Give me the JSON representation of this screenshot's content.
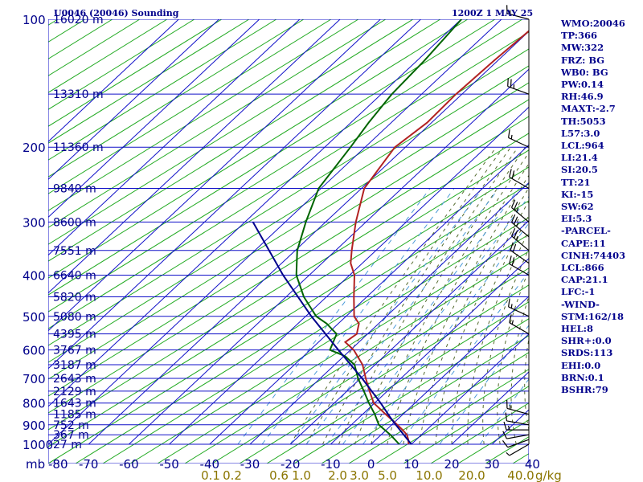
{
  "header": {
    "station_title": "U0046 (20046) Sounding",
    "valid_time": "1200Z  1 MAY 25"
  },
  "chart_data": {
    "type": "skew-t",
    "pressure_levels": [
      100,
      200,
      300,
      400,
      500,
      600,
      700,
      800,
      900,
      1000
    ],
    "pressure_unit_label": "mb",
    "temperature_ticks": [
      -80,
      -70,
      -60,
      -50,
      -40,
      -30,
      -20,
      -10,
      0,
      10,
      20,
      30,
      40
    ],
    "height_labels": [
      {
        "p": 100,
        "text": "16020 m"
      },
      {
        "p": 150,
        "text": "13310 m"
      },
      {
        "p": 200,
        "text": "11360 m"
      },
      {
        "p": 250,
        "text": "9840 m"
      },
      {
        "p": 300,
        "text": "8600 m"
      },
      {
        "p": 350,
        "text": "7551 m"
      },
      {
        "p": 400,
        "text": "6640 m"
      },
      {
        "p": 450,
        "text": "5820 m"
      },
      {
        "p": 500,
        "text": "5080 m"
      },
      {
        "p": 550,
        "text": "4395 m"
      },
      {
        "p": 600,
        "text": "3767 m"
      },
      {
        "p": 650,
        "text": "3187 m"
      },
      {
        "p": 700,
        "text": "2643 m"
      },
      {
        "p": 750,
        "text": "2129 m"
      },
      {
        "p": 800,
        "text": "1643 m"
      },
      {
        "p": 850,
        "text": "1185 m"
      },
      {
        "p": 900,
        "text": "752 m"
      },
      {
        "p": 950,
        "text": "367 m"
      },
      {
        "p": 1000,
        "text": "27 m"
      }
    ],
    "mixing_ratio_labels": [
      "0.1",
      "0.2",
      "0.6",
      "1.0",
      "2.0",
      "3.0",
      "5.0",
      "10.0",
      "20.0",
      "40.0"
    ],
    "mixing_ratio_unit": "g/kg",
    "series": [
      {
        "role": "temperature",
        "color": "#b22222",
        "points": [
          {
            "p": 1000,
            "t": 9.3
          },
          {
            "p": 975,
            "t": 8.0
          },
          {
            "p": 950,
            "t": 6.4
          },
          {
            "p": 925,
            "t": 4.0
          },
          {
            "p": 900,
            "t": 1.4
          },
          {
            "p": 850,
            "t": -4.3
          },
          {
            "p": 800,
            "t": -10.2
          },
          {
            "p": 750,
            "t": -14.4
          },
          {
            "p": 700,
            "t": -18.7
          },
          {
            "p": 650,
            "t": -23.1
          },
          {
            "p": 600,
            "t": -29.2
          },
          {
            "p": 575,
            "t": -33.4
          },
          {
            "p": 550,
            "t": -32.7
          },
          {
            "p": 520,
            "t": -34.9
          },
          {
            "p": 500,
            "t": -38.0
          },
          {
            "p": 450,
            "t": -43.2
          },
          {
            "p": 400,
            "t": -48.8
          },
          {
            "p": 375,
            "t": -52.9
          },
          {
            "p": 350,
            "t": -56.0
          },
          {
            "p": 300,
            "t": -62.5
          },
          {
            "p": 250,
            "t": -69.3
          },
          {
            "p": 200,
            "t": -72.6
          },
          {
            "p": 175,
            "t": -71.1
          },
          {
            "p": 150,
            "t": -71.5
          },
          {
            "p": 125,
            "t": -70.9
          },
          {
            "p": 100,
            "t": -69.8
          }
        ]
      },
      {
        "role": "dewpoint",
        "color": "#006400",
        "points": [
          {
            "p": 1000,
            "t": 7.0
          },
          {
            "p": 950,
            "t": 2.3
          },
          {
            "p": 900,
            "t": -3.2
          },
          {
            "p": 850,
            "t": -7.0
          },
          {
            "p": 800,
            "t": -11.4
          },
          {
            "p": 750,
            "t": -15.8
          },
          {
            "p": 700,
            "t": -20.6
          },
          {
            "p": 650,
            "t": -25.1
          },
          {
            "p": 620,
            "t": -29.8
          },
          {
            "p": 600,
            "t": -35.1
          },
          {
            "p": 550,
            "t": -37.7
          },
          {
            "p": 520,
            "t": -42.9
          },
          {
            "p": 500,
            "t": -47.4
          },
          {
            "p": 450,
            "t": -55.6
          },
          {
            "p": 400,
            "t": -63.2
          },
          {
            "p": 350,
            "t": -69.5
          },
          {
            "p": 300,
            "t": -74.9
          },
          {
            "p": 250,
            "t": -80.6
          },
          {
            "p": 200,
            "t": -83.6
          },
          {
            "p": 175,
            "t": -85.6
          },
          {
            "p": 150,
            "t": -87.4
          },
          {
            "p": 125,
            "t": -88.2
          },
          {
            "p": 100,
            "t": -89.9
          }
        ]
      },
      {
        "role": "parcel",
        "color": "#00008b",
        "points": [
          {
            "p": 1000,
            "t": 10.0
          },
          {
            "p": 900,
            "t": 1.0
          },
          {
            "p": 866,
            "t": -2.2
          },
          {
            "p": 800,
            "t": -8.5
          },
          {
            "p": 700,
            "t": -19.6
          },
          {
            "p": 600,
            "t": -33.0
          },
          {
            "p": 500,
            "t": -48.6
          },
          {
            "p": 400,
            "t": -66.5
          },
          {
            "p": 300,
            "t": -88.0
          }
        ]
      }
    ],
    "wind_barbs": [
      {
        "p": 1000,
        "dir": 240,
        "spd": 5
      },
      {
        "p": 975,
        "dir": 250,
        "spd": 10
      },
      {
        "p": 950,
        "dir": 260,
        "spd": 10
      },
      {
        "p": 925,
        "dir": 270,
        "spd": 15
      },
      {
        "p": 900,
        "dir": 280,
        "spd": 10
      },
      {
        "p": 850,
        "dir": 285,
        "spd": 15
      },
      {
        "p": 550,
        "dir": 300,
        "spd": 15
      },
      {
        "p": 500,
        "dir": 295,
        "spd": 15
      },
      {
        "p": 400,
        "dir": 300,
        "spd": 20
      },
      {
        "p": 375,
        "dir": 305,
        "spd": 20
      },
      {
        "p": 350,
        "dir": 310,
        "spd": 25
      },
      {
        "p": 325,
        "dir": 310,
        "spd": 25
      },
      {
        "p": 300,
        "dir": 310,
        "spd": 25
      },
      {
        "p": 250,
        "dir": 300,
        "spd": 20
      },
      {
        "p": 200,
        "dir": 295,
        "spd": 15
      },
      {
        "p": 150,
        "dir": 290,
        "spd": 25
      },
      {
        "p": 100,
        "dir": 285,
        "spd": 15
      }
    ]
  },
  "indices": [
    "WMO:20046",
    "TP:366",
    "MW:322",
    "FRZ: BG",
    "WB0: BG",
    "PW:0.14",
    "RH:46.9",
    "MAXT:-2.7",
    "TH:5053",
    "L57:3.0",
    "LCL:964",
    "LI:21.4",
    "SI:20.5",
    "TT:21",
    "KI:-15",
    "SW:62",
    "EI:5.3",
    "-PARCEL-",
    "CAPE:11",
    "CINH:74403",
    "LCL:866",
    "CAP:21.1",
    "LFC:-1",
    "-WIND-",
    "STM:162/18",
    "HEL:8",
    "SHR+:0.0",
    "SRDS:113",
    "EHI:0.0",
    "BRN:0.1",
    "BSHR:79"
  ]
}
